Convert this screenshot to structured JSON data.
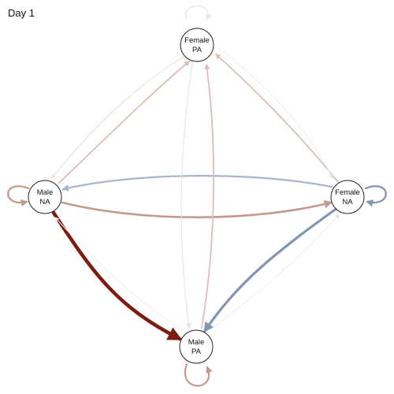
{
  "title": "Day 1",
  "nodes": {
    "female_pa": {
      "line1": "Female",
      "line2": "PA"
    },
    "male_na": {
      "line1": "Male",
      "line2": "NA"
    },
    "female_na": {
      "line1": "Female",
      "line2": "NA"
    },
    "male_pa": {
      "line1": "Male",
      "line2": "PA"
    }
  },
  "colors": {
    "node_fill": "#ffffff",
    "node_stroke": "#222222",
    "dark_red": "#7d1d10",
    "mid_red": "#c49a90",
    "light_red": "#dcbfb6",
    "faint_red": "#eed9d3",
    "blue": "#8494b4",
    "light_blue": "#aab4ca",
    "faint_grey": "#e6e4e6"
  }
}
